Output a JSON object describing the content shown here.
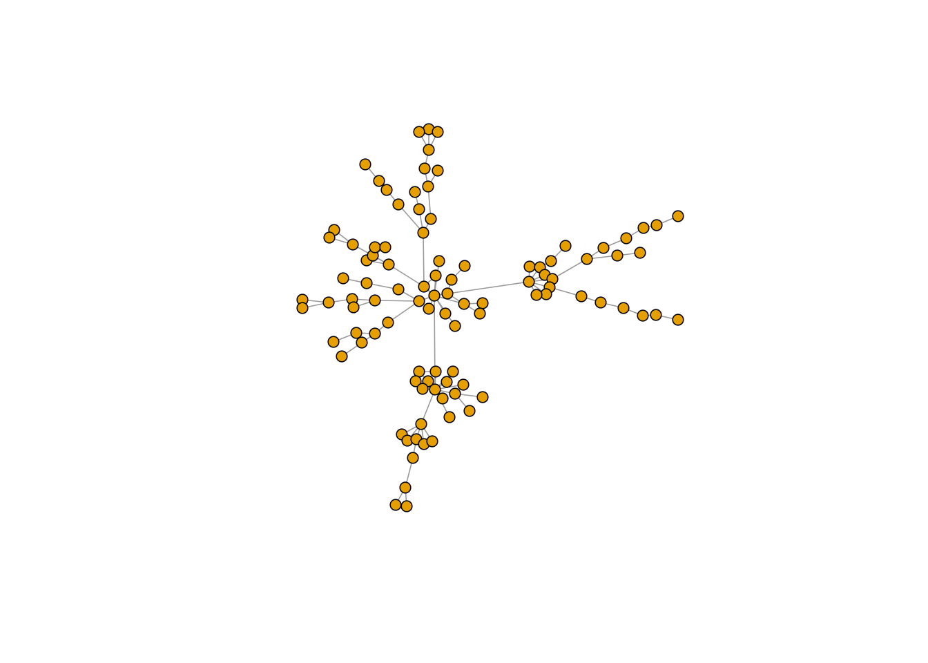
{
  "colors": {
    "background": "#ffffff",
    "node_fill": "#E69F00",
    "node_stroke": "#000000",
    "edge": "#999999"
  },
  "graph": {
    "type": "network",
    "directed": false,
    "node_count": 103,
    "edge_count": 102,
    "labels_shown": false
  }
}
